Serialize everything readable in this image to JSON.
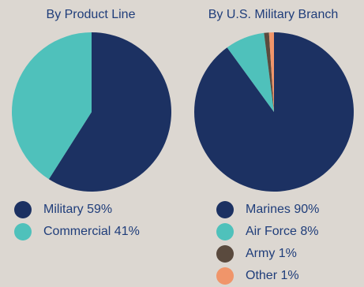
{
  "chart_data": [
    {
      "type": "pie",
      "title": "By Product Line",
      "slices": [
        {
          "label": "Military 59%",
          "name": "Military",
          "value": 59,
          "color": "#1c3162"
        },
        {
          "label": "Commercial 41%",
          "name": "Commercial",
          "value": 41,
          "color": "#4fc1bb"
        }
      ],
      "legend_position": "bottom"
    },
    {
      "type": "pie",
      "title": "By U.S. Military Branch",
      "slices": [
        {
          "label": "Marines 90%",
          "name": "Marines",
          "value": 90,
          "color": "#1c3162"
        },
        {
          "label": "Air Force 8%",
          "name": "Air Force",
          "value": 8,
          "color": "#4fc1bb"
        },
        {
          "label": "Army 1%",
          "name": "Army",
          "value": 1,
          "color": "#5a4a3e"
        },
        {
          "label": "Other 1%",
          "name": "Other",
          "value": 1,
          "color": "#f0956a"
        }
      ],
      "legend_position": "bottom"
    }
  ]
}
